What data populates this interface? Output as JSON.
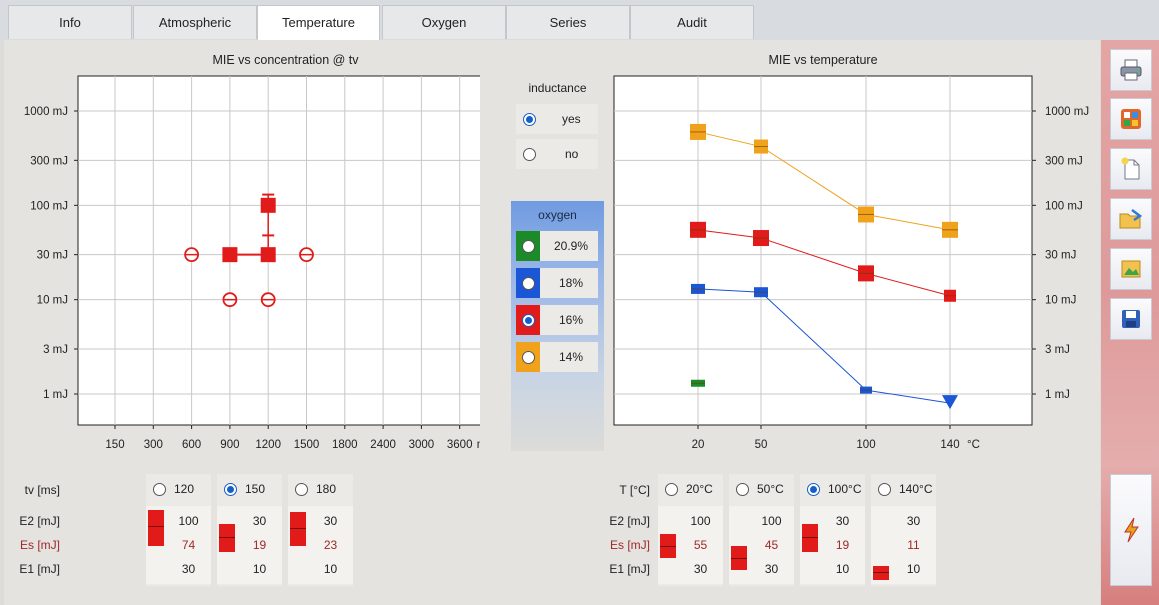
{
  "tabs": [
    {
      "label": "Info",
      "active": false
    },
    {
      "label": "Atmospheric",
      "active": false
    },
    {
      "label": "Temperature",
      "active": true
    },
    {
      "label": "Oxygen",
      "active": false
    },
    {
      "label": "Series",
      "active": false
    },
    {
      "label": "Audit",
      "active": false
    }
  ],
  "sidebar": {
    "icons": [
      "printer-icon",
      "palette-icon",
      "new-document-icon",
      "open-folder-icon",
      "import-image-icon",
      "save-icon"
    ],
    "action_icon": "lightning-icon"
  },
  "colors": {
    "red": "#e11a1a",
    "blue": "#1a56d6",
    "orange": "#f0a21c",
    "green": "#1d8a2a"
  },
  "chart_left": {
    "title": "MIE  vs  concentration  @  tv",
    "x_ticks": [
      "150",
      "300",
      "600",
      "900",
      "1200",
      "1500",
      "1800",
      "2400",
      "3000",
      "3600"
    ],
    "x_unit": "mg",
    "y_ticks": [
      "1000 mJ",
      "300 mJ",
      "100 mJ",
      "30 mJ",
      "10 mJ",
      "3 mJ",
      "1 mJ"
    ]
  },
  "chart_right": {
    "title": "MIE  vs  temperature",
    "x_ticks": [
      "20",
      "50",
      "100",
      "140"
    ],
    "x_unit": "°C",
    "y_ticks": [
      "1000 mJ",
      "300 mJ",
      "100 mJ",
      "30 mJ",
      "10 mJ",
      "3 mJ",
      "1 mJ"
    ]
  },
  "chart_data": [
    {
      "type": "scatter",
      "title": "MIE  vs  concentration  @  tv",
      "xlabel": "mg",
      "ylabel": "",
      "y_scale": "log",
      "ylim": [
        0.7,
        1500
      ],
      "x_categories": [
        "150",
        "300",
        "600",
        "900",
        "1200",
        "1500",
        "1800",
        "2400",
        "3000",
        "3600"
      ],
      "series": [
        {
          "color": "#e11a1a",
          "ignited_points": [
            {
              "x": "900",
              "y": 30
            },
            {
              "x": "1200",
              "y": 30
            },
            {
              "x": "1200",
              "y": 100
            }
          ],
          "non_ignited_points": [
            {
              "x": "600",
              "y": 30
            },
            {
              "x": "1500",
              "y": 30
            },
            {
              "x": "900",
              "y": 10
            },
            {
              "x": "1200",
              "y": 10
            }
          ],
          "error_caps": [
            {
              "x": "1200",
              "y": 130
            },
            {
              "x": "1200",
              "y": 48
            }
          ]
        }
      ]
    },
    {
      "type": "line",
      "title": "MIE  vs  temperature",
      "xlabel": "°C",
      "ylabel": "",
      "y_scale": "log",
      "ylim": [
        0.7,
        1500
      ],
      "x": [
        20,
        50,
        100,
        140
      ],
      "series": [
        {
          "color": "#f0a21c",
          "values": [
            600,
            420,
            80,
            55
          ]
        },
        {
          "color": "#e11a1a",
          "values": [
            55,
            45,
            19,
            11
          ]
        },
        {
          "color": "#1a56d6",
          "values": [
            13,
            12,
            1.1,
            0.8
          ],
          "last_marker": "triangle-down"
        },
        {
          "color": "#1d8a2a",
          "values": [
            1.3,
            null,
            null,
            null
          ]
        }
      ]
    }
  ],
  "inductance": {
    "label": "inductance",
    "options": [
      {
        "label": "yes",
        "selected": true
      },
      {
        "label": "no",
        "selected": false
      }
    ]
  },
  "oxygen": {
    "label": "oxygen",
    "options": [
      {
        "label": "20.9%",
        "color": "#1d8a2a",
        "selected": false
      },
      {
        "label": "18%",
        "color": "#1a56d6",
        "selected": false
      },
      {
        "label": "16%",
        "color": "#e11a1a",
        "selected": true
      },
      {
        "label": "14%",
        "color": "#f0a21c",
        "selected": false
      }
    ]
  },
  "tv_panel": {
    "header_label": "tv [ms]",
    "row_labels": {
      "e2": "E2 [mJ]",
      "es": "Es [mJ]",
      "e1": "E1 [mJ]"
    },
    "columns": [
      {
        "label": "120",
        "selected": false,
        "e2": "100",
        "es": "74",
        "e1": "30"
      },
      {
        "label": "150",
        "selected": true,
        "e2": "30",
        "es": "19",
        "e1": "10"
      },
      {
        "label": "180",
        "selected": false,
        "e2": "30",
        "es": "23",
        "e1": "10"
      }
    ]
  },
  "t_panel": {
    "header_label": "T [°C]",
    "row_labels": {
      "e2": "E2 [mJ]",
      "es": "Es [mJ]",
      "e1": "E1 [mJ]"
    },
    "columns": [
      {
        "label": "20°C",
        "selected": false,
        "e2": "100",
        "es": "55",
        "e1": "30"
      },
      {
        "label": "50°C",
        "selected": false,
        "e2": "100",
        "es": "45",
        "e1": "30"
      },
      {
        "label": "100°C",
        "selected": true,
        "e2": "30",
        "es": "19",
        "e1": "10"
      },
      {
        "label": "140°C",
        "selected": false,
        "e2": "30",
        "es": "11",
        "e1": "10"
      }
    ]
  }
}
